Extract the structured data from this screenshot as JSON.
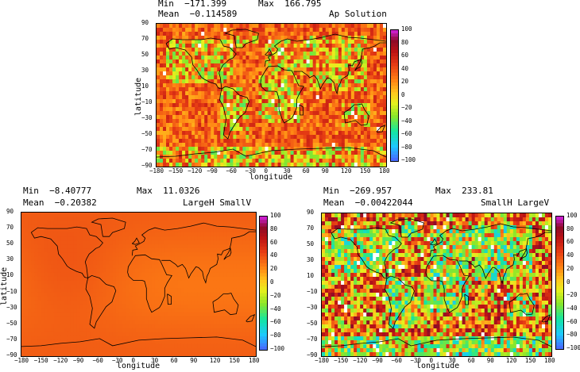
{
  "chart_data": [
    {
      "type": "heatmap",
      "title": "Ap Solution",
      "stats": {
        "min": "Min  −171.399",
        "max": "Max  166.795",
        "mean": "Mean  −0.114589"
      },
      "xlabel": "longitude",
      "ylabel": "latitude",
      "xticks": [
        "−180",
        "−150",
        "−120",
        "−90",
        "−60",
        "−30",
        "0",
        "30",
        "60",
        "90",
        "120",
        "150",
        "180"
      ],
      "yticks": [
        "90",
        "70",
        "50",
        "30",
        "10",
        "−10",
        "−30",
        "−50",
        "−70",
        "−90"
      ],
      "xlim": [
        -180,
        180
      ],
      "ylim": [
        -90,
        90
      ],
      "colorbar": {
        "ticks": [
          "100",
          "80",
          "60",
          "40",
          "20",
          "0",
          "−20",
          "−40",
          "−60",
          "−80",
          "−100"
        ],
        "range": [
          -100,
          100
        ]
      },
      "field_description": "noisy field, mostly 20–60 (orange/red), negative patches over continents",
      "noise": 0.55,
      "base": 0.68,
      "pattern": "ap"
    },
    {
      "type": "heatmap",
      "title": "LargeH SmallV",
      "stats": {
        "min": "Min  −8.40777",
        "max": "Max  11.0326",
        "mean": "Mean  −0.20382"
      },
      "xlabel": "longitude",
      "ylabel": "latitude",
      "xticks": [
        "−180",
        "−150",
        "−120",
        "−90",
        "−60",
        "−30",
        "0",
        "30",
        "60",
        "90",
        "120",
        "150",
        "180"
      ],
      "yticks": [
        "90",
        "70",
        "50",
        "30",
        "10",
        "−10",
        "−30",
        "−50",
        "−70",
        "−90"
      ],
      "xlim": [
        -180,
        180
      ],
      "ylim": [
        -90,
        90
      ],
      "colorbar": {
        "ticks": [
          "100",
          "80",
          "60",
          "40",
          "20",
          "0",
          "−20",
          "−40",
          "−60",
          "−80",
          "−100"
        ],
        "range": [
          -100,
          100
        ]
      },
      "field_description": "smooth field, values near 0–15 (uniform orange)",
      "noise": 0.0,
      "base": 0.66,
      "pattern": "smooth"
    },
    {
      "type": "heatmap",
      "title": "SmallH LargeV",
      "stats": {
        "min": "Min  −269.957",
        "max": "Max  233.81",
        "mean": "Mean  −0.00422044"
      },
      "xlabel": "longitude",
      "ylabel": "",
      "xticks": [
        "−180",
        "−150",
        "−120",
        "−90",
        "−60",
        "−30",
        "0",
        "30",
        "60",
        "90",
        "120",
        "150",
        "180"
      ],
      "yticks": [
        "90",
        "70",
        "50",
        "30",
        "10",
        "−10",
        "−30",
        "−50",
        "−70",
        "−90"
      ],
      "xlim": [
        -180,
        180
      ],
      "ylim": [
        -90,
        90
      ],
      "colorbar": {
        "ticks": [
          "100",
          "80",
          "60",
          "40",
          "20",
          "0",
          "−20",
          "−40",
          "−60",
          "−80",
          "−100"
        ],
        "range": [
          -100,
          100
        ]
      },
      "field_description": "very noisy field spanning full colour range",
      "noise": 1.0,
      "base": 0.55,
      "pattern": "large"
    }
  ]
}
